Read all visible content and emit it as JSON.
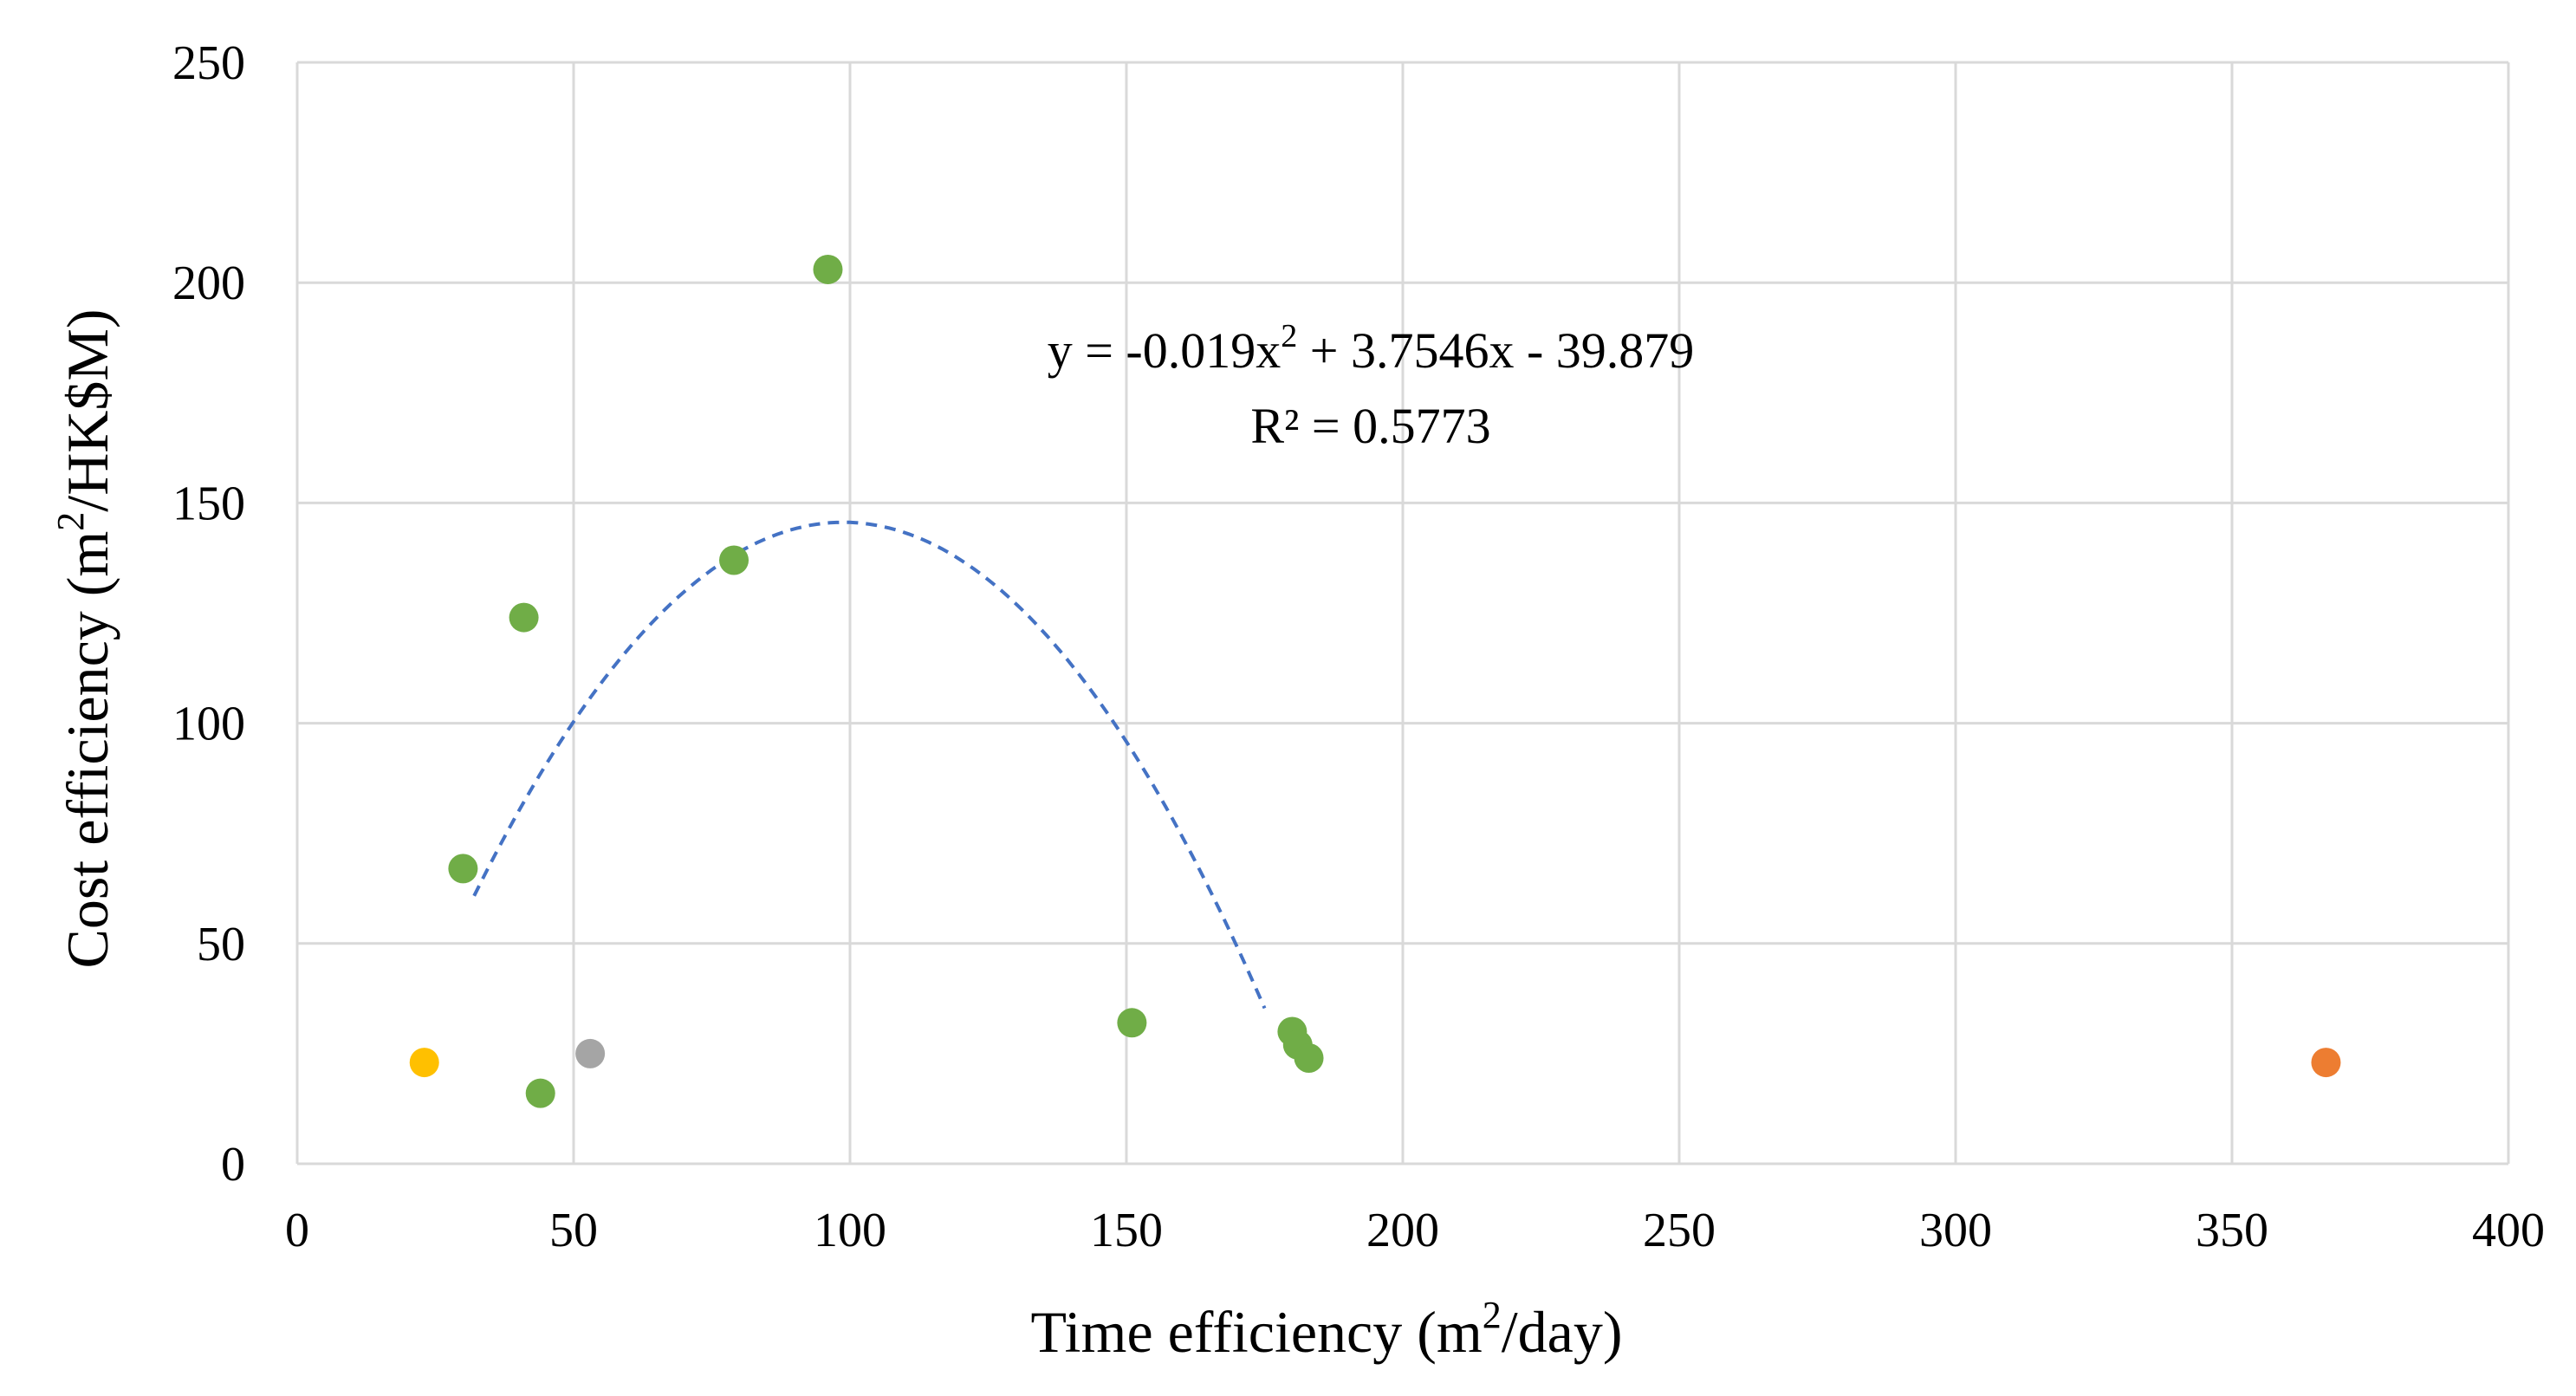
{
  "chart_data": {
    "type": "scatter",
    "title": "",
    "xlabel": "Time efficiency  (m2/day)",
    "xlabel_parts": {
      "prefix": "Time efficiency  (m",
      "sup": "2",
      "suffix": "/day)"
    },
    "ylabel": "Cost efficiency (m2/HK$M)",
    "ylabel_parts": {
      "prefix": "Cost efficiency (m",
      "sup": "2",
      "suffix": "/HK$M)"
    },
    "xlim": [
      0,
      400
    ],
    "ylim": [
      0,
      250
    ],
    "xticks": [
      0,
      50,
      100,
      150,
      200,
      250,
      300,
      350,
      400
    ],
    "yticks": [
      0,
      50,
      100,
      150,
      200,
      250
    ],
    "grid": true,
    "series": [
      {
        "name": "green",
        "color": "#70ad47",
        "points": [
          {
            "x": 30,
            "y": 67
          },
          {
            "x": 41,
            "y": 124
          },
          {
            "x": 44,
            "y": 16
          },
          {
            "x": 79,
            "y": 137
          },
          {
            "x": 96,
            "y": 203
          },
          {
            "x": 151,
            "y": 32
          },
          {
            "x": 180,
            "y": 30
          },
          {
            "x": 181,
            "y": 27
          },
          {
            "x": 183,
            "y": 24
          }
        ]
      },
      {
        "name": "yellow",
        "color": "#ffc000",
        "points": [
          {
            "x": 23,
            "y": 23
          }
        ]
      },
      {
        "name": "gray",
        "color": "#a5a5a5",
        "points": [
          {
            "x": 53,
            "y": 25
          }
        ]
      },
      {
        "name": "orange",
        "color": "#ed7d31",
        "points": [
          {
            "x": 367,
            "y": 23
          }
        ]
      }
    ],
    "trendline": {
      "type": "polynomial",
      "order": 2,
      "coefficients": {
        "a": -0.019,
        "b": 3.7546,
        "c": -39.879
      },
      "x_range": [
        32,
        175
      ],
      "color": "#4472c4",
      "style": "dashed",
      "equation_parts": {
        "prefix": "y = -0.019x",
        "sup": "2",
        "suffix": " + 3.7546x - 39.879"
      },
      "r2_label": "R² = 0.5773"
    }
  }
}
